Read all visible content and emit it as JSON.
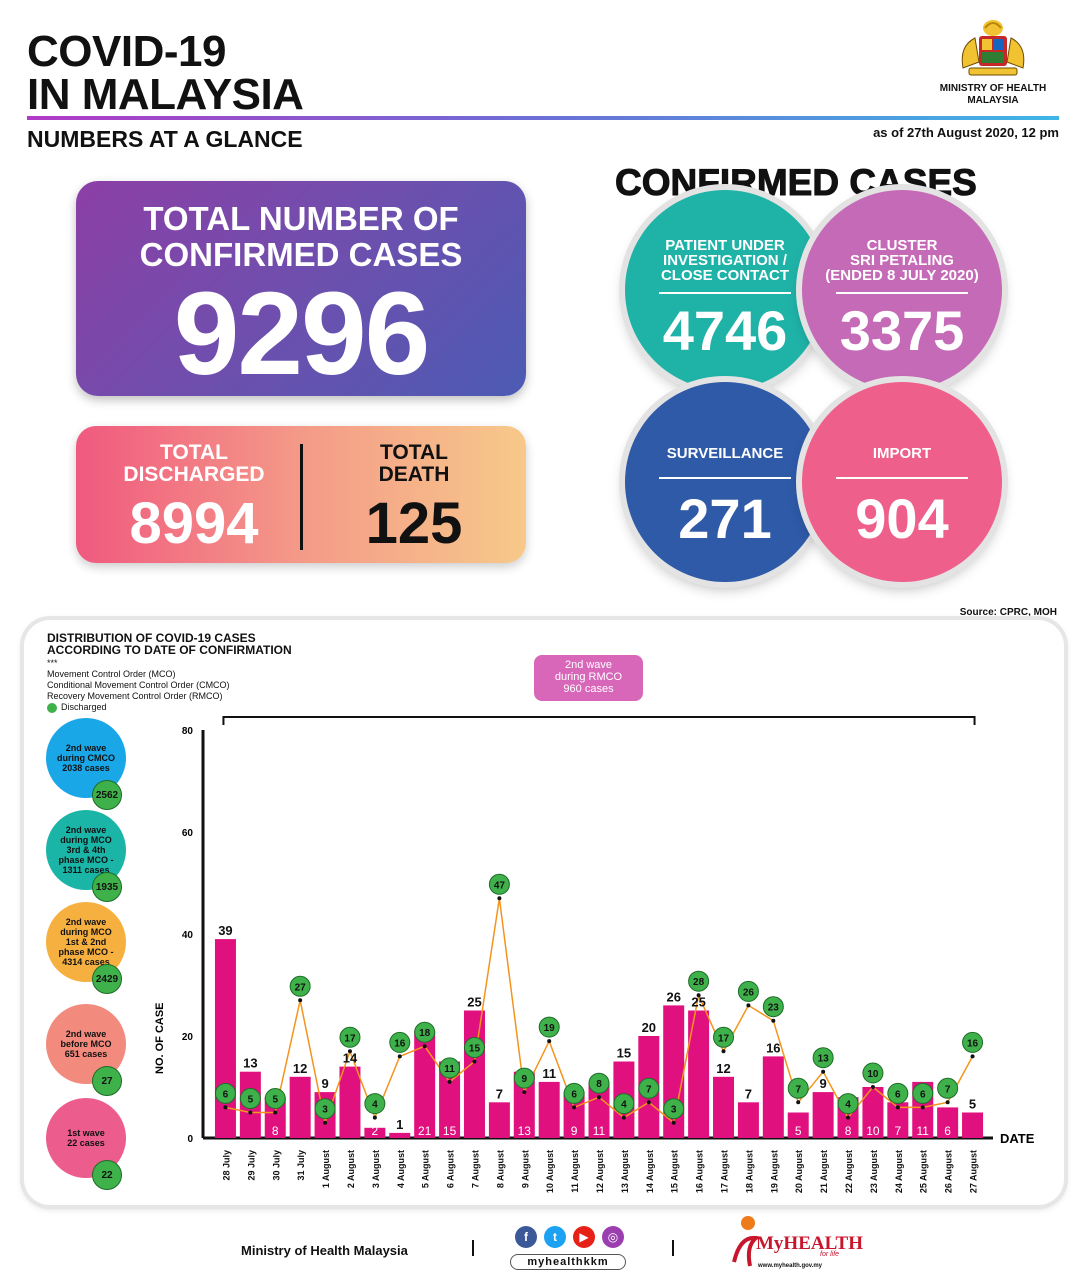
{
  "header": {
    "title_line1": "COVID-19",
    "title_line2": "IN MALAYSIA",
    "subtitle": "NUMBERS AT A GLANCE",
    "ministry_line1": "MINISTRY OF HEALTH",
    "ministry_line2": "MALAYSIA",
    "as_of": "as of 27th August 2020, 12 pm"
  },
  "total": {
    "label_line1": "TOTAL NUMBER OF",
    "label_line2": "CONFIRMED CASES",
    "value": "9296"
  },
  "discharged": {
    "label_line1": "TOTAL",
    "label_line2": "DISCHARGED",
    "value": "8994"
  },
  "death": {
    "label_line1": "TOTAL",
    "label_line2": "DEATH",
    "value": "125"
  },
  "confirmed": {
    "title": "CONFIRMED CASES",
    "pui": {
      "l1": "PATIENT UNDER",
      "l2": "INVESTIGATION /",
      "l3": "CLOSE CONTACT",
      "value": "4746",
      "color": "#1fb3a8"
    },
    "cluster": {
      "l1": "CLUSTER",
      "l2": "SRI PETALING",
      "l3": "(ENDED 8 JULY 2020)",
      "value": "3375",
      "color": "#c56ab6"
    },
    "surveillance": {
      "l1": "SURVEILLANCE",
      "value": "271",
      "color": "#2f5aa8"
    },
    "import": {
      "l1": "IMPORT",
      "value": "904",
      "color": "#ee5f8b"
    }
  },
  "source": "Source: CPRC, MOH",
  "chart_panel": {
    "title_line1": "DISTRIBUTION OF COVID-19 CASES",
    "title_line2": "ACCORDING TO DATE OF CONFIRMATION",
    "legend_marker": "***",
    "legend_mco": "Movement Control Order (MCO)",
    "legend_cmco": "Conditional Movement Control Order (CMCO)",
    "legend_rmco": "Recovery Movement Control Order (RMCO)",
    "legend_discharged": "Discharged",
    "rmco_box": {
      "l1": "2nd wave",
      "l2": "during RMCO",
      "l3": "960 cases"
    },
    "waves": [
      {
        "lines": [
          "2nd wave",
          "during CMCO",
          "2038 cases"
        ],
        "badge": "2562",
        "color": "#1aa7e8"
      },
      {
        "lines": [
          "2nd wave",
          "during MCO",
          "3rd & 4th",
          "phase MCO -",
          "1311 cases"
        ],
        "badge": "1935",
        "color": "#1ab5a6"
      },
      {
        "lines": [
          "2nd wave",
          "during MCO",
          "1st & 2nd",
          "phase MCO -",
          "4314 cases"
        ],
        "badge": "2429",
        "color": "#f6b040"
      },
      {
        "lines": [
          "2nd wave",
          "before MCO",
          "651 cases"
        ],
        "badge": "27",
        "color": "#f28a7e"
      },
      {
        "lines": [
          "1st wave",
          "22 cases"
        ],
        "badge": "22",
        "color": "#ec5c8c"
      }
    ]
  },
  "chart_data": {
    "type": "bar",
    "title": "",
    "xlabel": "DATE",
    "ylabel": "NO. OF CASE",
    "ylim": [
      0,
      80
    ],
    "yticks": [
      0,
      20,
      40,
      60,
      80
    ],
    "categories": [
      "28 July",
      "29 July",
      "30 July",
      "31 July",
      "1 August",
      "2 August",
      "3 August",
      "4 August",
      "5 August",
      "6 August",
      "7 August",
      "8 August",
      "9 August",
      "10 August",
      "11 August",
      "12 August",
      "13 August",
      "14 August",
      "15 August",
      "16 August",
      "17 August",
      "18 August",
      "19 August",
      "20 August",
      "21 August",
      "22 August",
      "23 August",
      "24 August",
      "25 August",
      "26 August",
      "27 August"
    ],
    "series": [
      {
        "name": "",
        "type": "bar",
        "color": "#e0117f",
        "values": [
          39,
          13,
          8,
          12,
          9,
          14,
          2,
          1,
          21,
          15,
          25,
          7,
          13,
          11,
          9,
          11,
          15,
          20,
          26,
          25,
          12,
          7,
          16,
          5,
          9,
          8,
          10,
          7,
          11,
          6,
          5
        ]
      },
      {
        "name": "Discharged",
        "type": "line",
        "color": "#f3941d",
        "marker_color": "#3fb14b",
        "values": [
          6,
          5,
          5,
          27,
          3,
          17,
          4,
          16,
          18,
          11,
          15,
          47,
          9,
          19,
          6,
          8,
          4,
          7,
          3,
          28,
          17,
          26,
          23,
          7,
          13,
          4,
          10,
          6,
          6,
          7,
          16
        ]
      }
    ],
    "label_inside_bar": [
      false,
      false,
      true,
      false,
      false,
      false,
      true,
      false,
      true,
      true,
      false,
      false,
      true,
      false,
      true,
      true,
      false,
      false,
      false,
      false,
      false,
      false,
      false,
      true,
      false,
      true,
      true,
      true,
      true,
      true,
      false
    ],
    "grid": false
  },
  "footer": {
    "ministry": "Ministry of Health Malaysia",
    "handle": "myhealthkkm",
    "brand": "MyHEALTH",
    "tagline": "for life",
    "website": "www.myhealth.gov.my"
  }
}
